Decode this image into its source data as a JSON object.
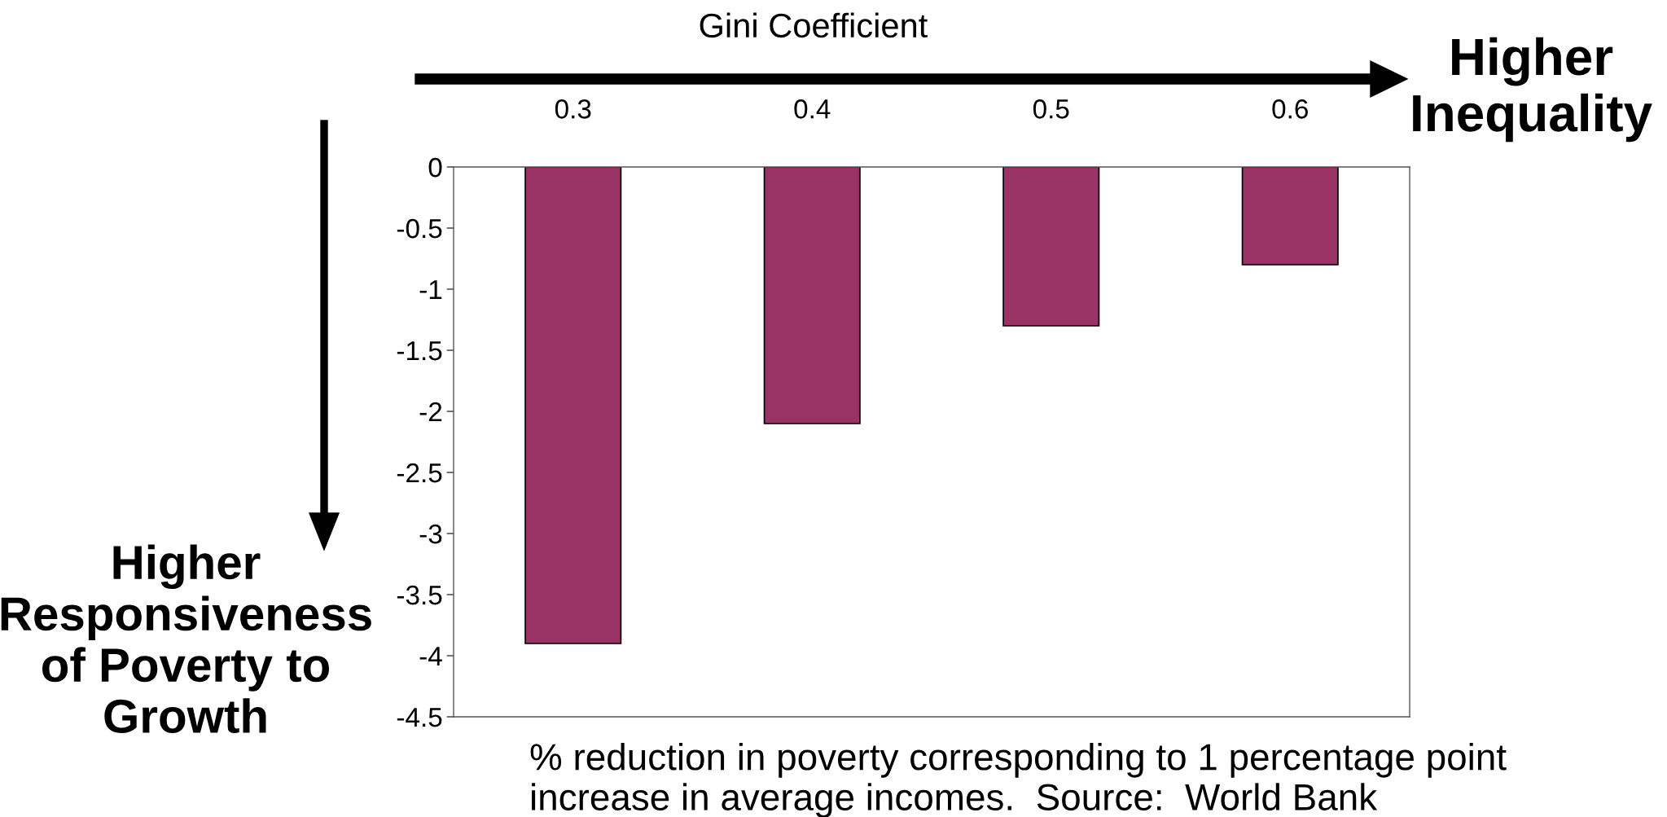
{
  "chart_data": {
    "type": "bar",
    "xlabel": "Gini Coefficient",
    "categories": [
      "0.3",
      "0.4",
      "0.5",
      "0.6"
    ],
    "values": [
      -3.9,
      -2.1,
      -1.3,
      -0.8
    ],
    "color": "#993366",
    "ylim": [
      -4.5,
      0
    ],
    "yticks": [
      0,
      -0.5,
      -1,
      -1.5,
      -2,
      -2.5,
      -3,
      -3.5,
      -4,
      -4.5
    ],
    "grid": false,
    "legend": false,
    "annotations": [
      "Higher\nInequality",
      "Higher\nResponsiveness\nof Poverty to\nGrowth",
      "% reduction in poverty corresponding to 1 percentage point\nincrease in average incomes.  Source:  World Bank"
    ]
  }
}
